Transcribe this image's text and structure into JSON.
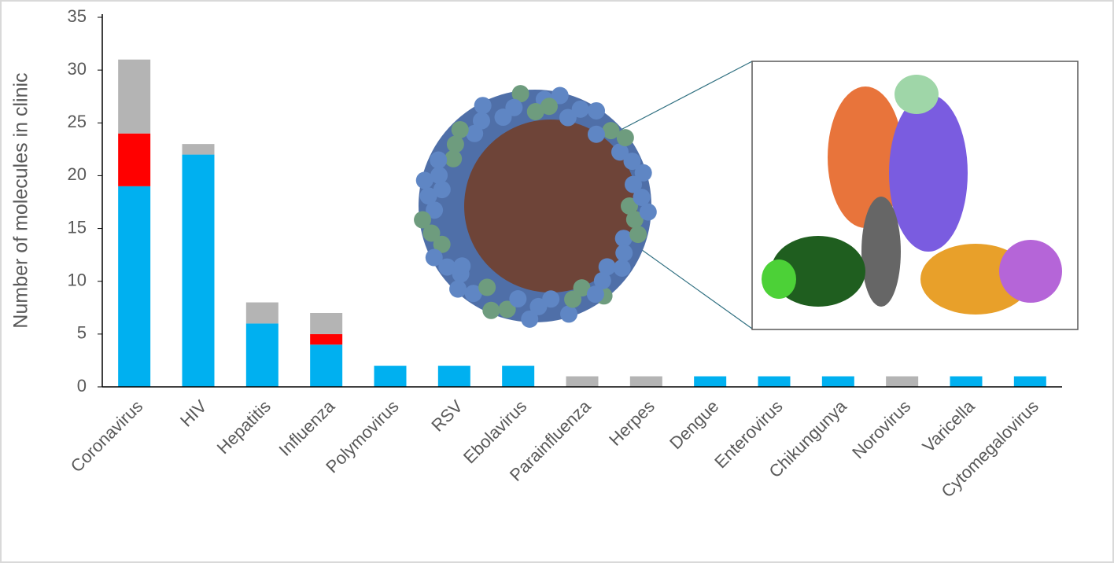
{
  "chart_data": {
    "type": "stacked-bar",
    "y_label": "Number of molecules in clinic",
    "categories": [
      "Coronavirus",
      "HIV",
      "Hepatitis",
      "Influenza",
      "Polymovirus",
      "RSV",
      "Ebolavirus",
      "Parainfluenza",
      "Herpes",
      "Dengue",
      "Enterovirus",
      "Chikungunya",
      "Norovirus",
      "Varicella",
      "Cytomegalovirus"
    ],
    "series": [
      {
        "color": "#00b0f0",
        "values": [
          19,
          22,
          6,
          4,
          2,
          2,
          2,
          0,
          0,
          1,
          1,
          1,
          0,
          1,
          1
        ]
      },
      {
        "color": "#ff0000",
        "values": [
          5,
          0,
          0,
          1,
          0,
          0,
          0,
          0,
          0,
          0,
          0,
          0,
          0,
          0,
          0
        ]
      },
      {
        "color": "#b4b4b4",
        "values": [
          7,
          1,
          2,
          2,
          0,
          0,
          0,
          1,
          1,
          0,
          0,
          0,
          1,
          0,
          0
        ]
      }
    ],
    "ylim": [
      0,
      35
    ],
    "yticks": [
      0,
      5,
      10,
      15,
      20,
      25,
      30,
      35
    ]
  }
}
